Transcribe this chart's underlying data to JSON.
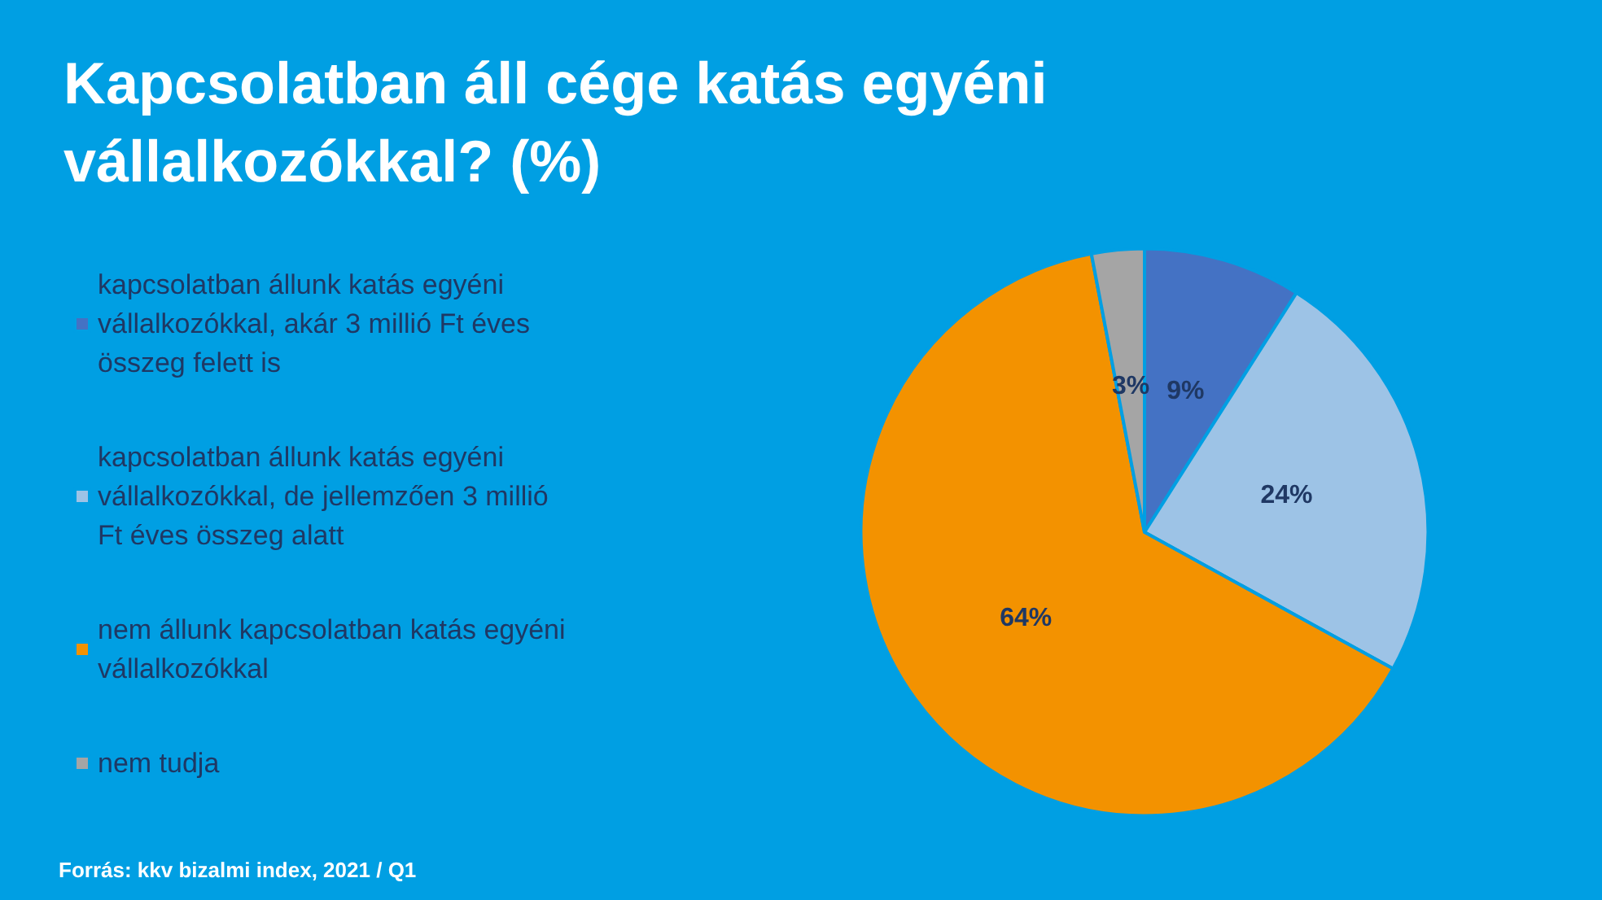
{
  "chart_data": {
    "type": "pie",
    "title": "Kapcsolatban áll cége katás egyéni vállalkozókkal? (%)",
    "categories": [
      "kapcsolatban állunk katás egyéni vállalkozókkal, akár 3 millió Ft éves összeg felett is",
      "kapcsolatban állunk katás egyéni vállalkozókkal, de jellemzően 3 millió Ft éves összeg alatt",
      "nem állunk kapcsolatban katás egyéni vállalkozókkal",
      "nem tudja"
    ],
    "values": [
      9,
      24,
      64,
      3
    ],
    "colors": [
      "#4472c4",
      "#9dc3e6",
      "#f39200",
      "#a5a5a5"
    ],
    "value_labels": [
      "9%",
      "24%",
      "64%",
      "3%"
    ],
    "legend": "left",
    "annotations": [
      "Forrás: kkv bizalmi index, 2021 / Q1"
    ]
  }
}
